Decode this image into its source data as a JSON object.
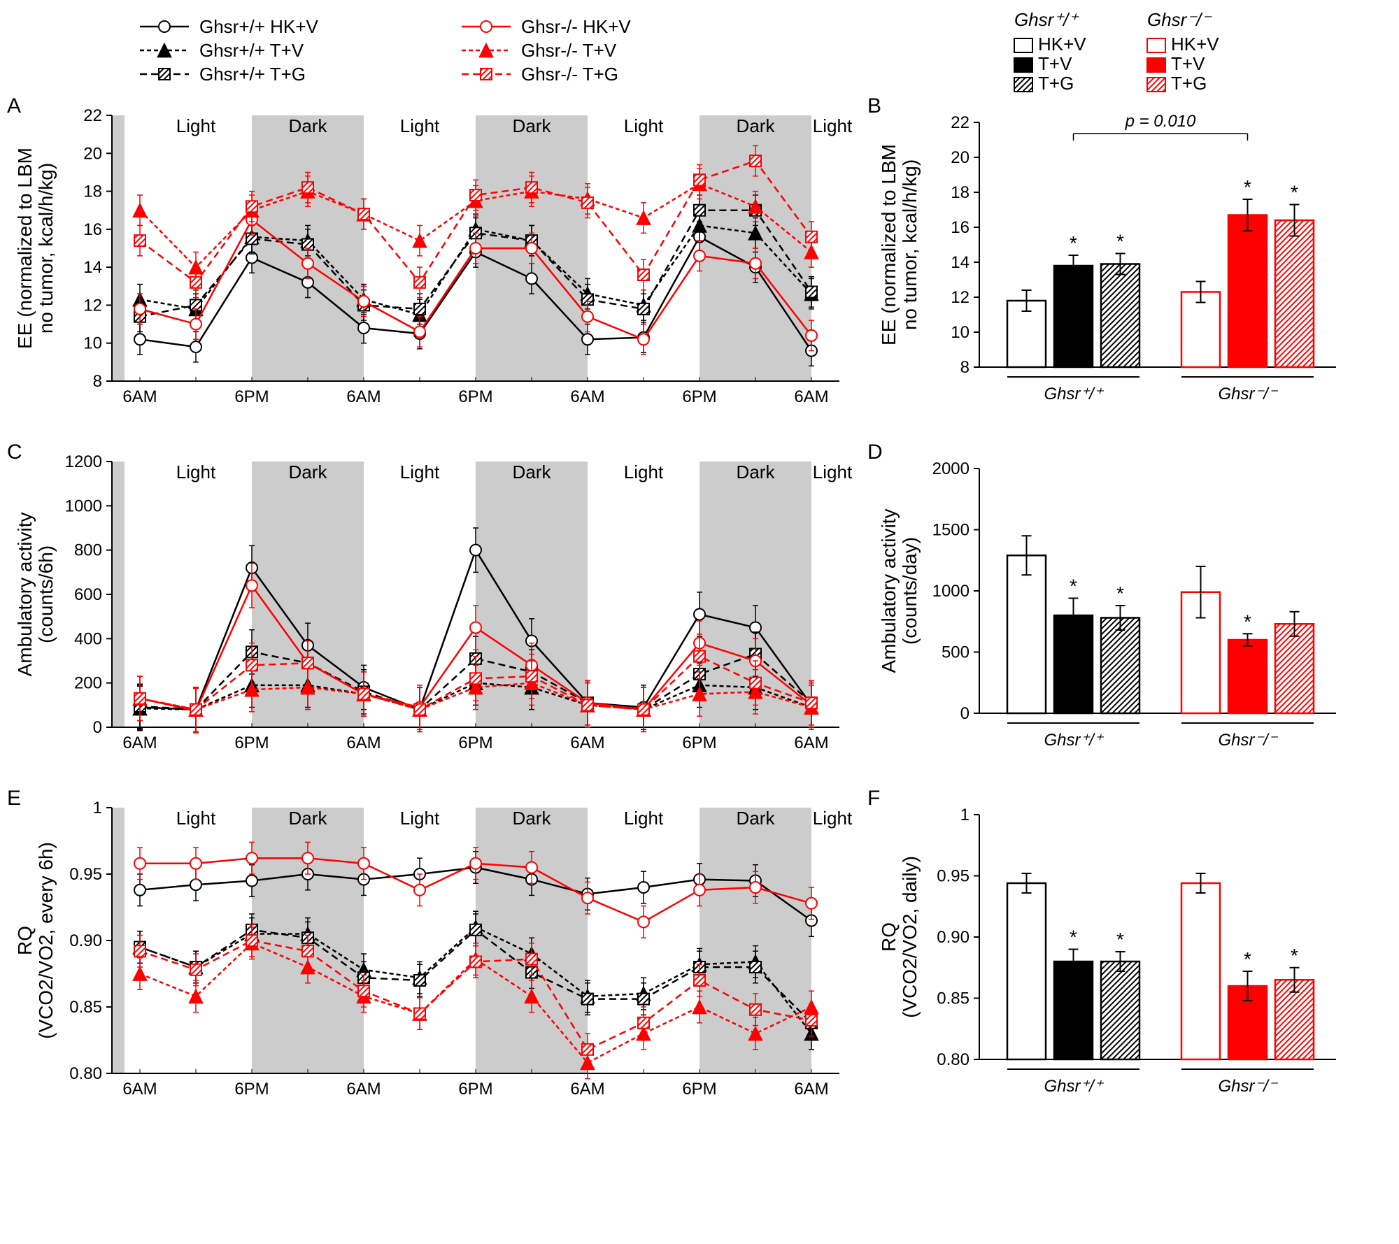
{
  "colors": {
    "black": "#000000",
    "red": "#ff0000",
    "shade": "#cccccc",
    "hatch_dark": "#555555",
    "hatch_red": "#ff8080",
    "white": "#ffffff"
  },
  "line_series": [
    {
      "id": "wt_hkv",
      "label": "Ghsr+/+ HK+V",
      "color": "#000000",
      "dash": "",
      "marker": "circle",
      "fill": "#ffffff"
    },
    {
      "id": "wt_tv",
      "label": "Ghsr+/+ T+V",
      "color": "#000000",
      "dash": "6,4",
      "marker": "triangle",
      "fill": "#000000"
    },
    {
      "id": "wt_tg",
      "label": "Ghsr+/+ T+G",
      "color": "#000000",
      "dash": "10,6",
      "marker": "square-hatch",
      "fill": "hatch-black"
    },
    {
      "id": "ko_hkv",
      "label": "Ghsr-/- HK+V",
      "color": "#ff0000",
      "dash": "",
      "marker": "circle",
      "fill": "#ffffff"
    },
    {
      "id": "ko_tv",
      "label": "Ghsr-/- T+V",
      "color": "#ff0000",
      "dash": "6,4",
      "marker": "triangle",
      "fill": "#ff0000"
    },
    {
      "id": "ko_tg",
      "label": "Ghsr-/- T+G",
      "color": "#ff0000",
      "dash": "10,6",
      "marker": "square-hatch",
      "fill": "hatch-red"
    }
  ],
  "bar_legend": {
    "wt_label": "Ghsr⁺/⁺",
    "ko_label": "Ghsr⁻/⁻",
    "wt_groups": [
      "HK+V",
      "T+V",
      "T+G"
    ],
    "ko_groups": [
      "HK+V",
      "T+V",
      "T+G"
    ]
  },
  "time_ticks": [
    "6AM",
    "6PM",
    "6AM",
    "6PM",
    "6AM",
    "6PM",
    "6AM"
  ],
  "light_dark": [
    "Light",
    "Dark",
    "Light",
    "Dark",
    "Light",
    "Dark",
    "Light"
  ],
  "panelA": {
    "ylabel": "EE (normalized to LBM no tumor, kcal/h/kg)",
    "ylim": [
      8,
      22
    ],
    "yticks": [
      8,
      10,
      12,
      14,
      16,
      18,
      20,
      22
    ],
    "data": {
      "wt_hkv": [
        10.2,
        9.8,
        14.5,
        13.2,
        10.8,
        10.5,
        14.8,
        13.4,
        10.2,
        10.3,
        15.6,
        14.0,
        9.6
      ],
      "wt_tv": [
        12.3,
        11.8,
        15.6,
        15.4,
        12.3,
        11.5,
        16.0,
        15.4,
        12.6,
        12.0,
        16.2,
        15.8,
        12.6
      ],
      "wt_tg": [
        11.4,
        12.0,
        15.5,
        15.2,
        12.0,
        11.8,
        15.8,
        15.4,
        12.3,
        11.8,
        17.0,
        17.0,
        12.7
      ],
      "ko_hkv": [
        11.8,
        11.0,
        16.5,
        14.2,
        12.2,
        10.6,
        15.0,
        15.0,
        11.4,
        10.2,
        14.6,
        14.2,
        10.4
      ],
      "ko_tv": [
        17.0,
        14.0,
        17.0,
        18.0,
        16.8,
        15.4,
        17.5,
        18.0,
        17.6,
        16.6,
        18.4,
        17.2,
        14.8
      ],
      "ko_tg": [
        15.4,
        13.2,
        17.2,
        18.2,
        16.8,
        13.2,
        17.8,
        18.2,
        17.4,
        13.6,
        18.6,
        19.6,
        15.6
      ]
    },
    "err": 0.8
  },
  "panelB": {
    "ylabel": "EE (normalized to LBM no tumor, kcal/h/kg)",
    "ylim": [
      8,
      22
    ],
    "yticks": [
      8,
      10,
      12,
      14,
      16,
      18,
      20,
      22
    ],
    "bars": [
      {
        "g": "wt",
        "t": "HK+V",
        "v": 11.8,
        "e": 0.6,
        "star": false
      },
      {
        "g": "wt",
        "t": "T+V",
        "v": 13.8,
        "e": 0.6,
        "star": true
      },
      {
        "g": "wt",
        "t": "T+G",
        "v": 13.9,
        "e": 0.6,
        "star": true
      },
      {
        "g": "ko",
        "t": "HK+V",
        "v": 12.3,
        "e": 0.6,
        "star": false
      },
      {
        "g": "ko",
        "t": "T+V",
        "v": 16.7,
        "e": 0.9,
        "star": true
      },
      {
        "g": "ko",
        "t": "T+G",
        "v": 16.4,
        "e": 0.9,
        "star": true
      }
    ],
    "pvalue": "p = 0.010"
  },
  "panelC": {
    "ylabel": "Ambulatory activity (counts/6h)",
    "ylim": [
      0,
      1200
    ],
    "yticks": [
      0,
      200,
      400,
      600,
      800,
      1000,
      1200
    ],
    "data": {
      "wt_hkv": [
        90,
        80,
        720,
        370,
        180,
        80,
        800,
        390,
        110,
        90,
        510,
        450,
        100
      ],
      "wt_tv": [
        85,
        80,
        190,
        190,
        150,
        80,
        200,
        180,
        100,
        80,
        190,
        180,
        90
      ],
      "wt_tg": [
        95,
        80,
        340,
        290,
        160,
        80,
        310,
        250,
        110,
        80,
        240,
        330,
        110
      ],
      "ko_hkv": [
        130,
        75,
        640,
        290,
        150,
        90,
        450,
        280,
        110,
        80,
        380,
        300,
        100
      ],
      "ko_tv": [
        130,
        80,
        170,
        180,
        150,
        80,
        180,
        200,
        100,
        80,
        150,
        160,
        90
      ],
      "ko_tg": [
        130,
        80,
        280,
        290,
        150,
        80,
        220,
        230,
        100,
        80,
        320,
        200,
        110
      ]
    },
    "err": 100
  },
  "panelD": {
    "ylabel": "Ambulatory activity (counts/day)",
    "ylim": [
      0,
      2000
    ],
    "yticks": [
      0,
      500,
      1000,
      1500,
      2000
    ],
    "bars": [
      {
        "g": "wt",
        "t": "HK+V",
        "v": 1290,
        "e": 160,
        "star": false
      },
      {
        "g": "wt",
        "t": "T+V",
        "v": 800,
        "e": 140,
        "star": true
      },
      {
        "g": "wt",
        "t": "T+G",
        "v": 780,
        "e": 100,
        "star": true
      },
      {
        "g": "ko",
        "t": "HK+V",
        "v": 990,
        "e": 210,
        "star": false
      },
      {
        "g": "ko",
        "t": "T+V",
        "v": 600,
        "e": 50,
        "star": true
      },
      {
        "g": "ko",
        "t": "T+G",
        "v": 730,
        "e": 100,
        "star": false
      }
    ]
  },
  "panelE": {
    "ylabel": "RQ (VCO2/VO2, every 6h)",
    "ylim": [
      0.8,
      1.0
    ],
    "yticks": [
      0.8,
      0.85,
      0.9,
      0.95,
      1.0
    ],
    "data": {
      "wt_hkv": [
        0.938,
        0.942,
        0.945,
        0.95,
        0.946,
        0.95,
        0.955,
        0.946,
        0.935,
        0.94,
        0.946,
        0.945,
        0.915
      ],
      "wt_tv": [
        0.895,
        0.88,
        0.905,
        0.905,
        0.878,
        0.872,
        0.91,
        0.89,
        0.858,
        0.86,
        0.882,
        0.884,
        0.83
      ],
      "wt_tg": [
        0.895,
        0.88,
        0.908,
        0.902,
        0.872,
        0.87,
        0.908,
        0.876,
        0.856,
        0.856,
        0.88,
        0.88,
        0.838
      ],
      "ko_hkv": [
        0.958,
        0.958,
        0.962,
        0.962,
        0.958,
        0.938,
        0.958,
        0.955,
        0.932,
        0.914,
        0.938,
        0.94,
        0.928
      ],
      "ko_tv": [
        0.875,
        0.858,
        0.898,
        0.88,
        0.858,
        0.845,
        0.886,
        0.858,
        0.808,
        0.83,
        0.85,
        0.83,
        0.85
      ],
      "ko_tg": [
        0.892,
        0.878,
        0.9,
        0.892,
        0.862,
        0.845,
        0.884,
        0.886,
        0.818,
        0.838,
        0.87,
        0.848,
        0.84
      ]
    },
    "err": 0.012
  },
  "panelF": {
    "ylabel": "RQ (VCO2/VO2, daily)",
    "ylim": [
      0.8,
      1.0
    ],
    "yticks": [
      0.8,
      0.85,
      0.9,
      0.95,
      1.0
    ],
    "bars": [
      {
        "g": "wt",
        "t": "HK+V",
        "v": 0.944,
        "e": 0.008,
        "star": false
      },
      {
        "g": "wt",
        "t": "T+V",
        "v": 0.88,
        "e": 0.01,
        "star": true
      },
      {
        "g": "wt",
        "t": "T+G",
        "v": 0.88,
        "e": 0.008,
        "star": true
      },
      {
        "g": "ko",
        "t": "HK+V",
        "v": 0.944,
        "e": 0.008,
        "star": false
      },
      {
        "g": "ko",
        "t": "T+V",
        "v": 0.86,
        "e": 0.012,
        "star": true
      },
      {
        "g": "ko",
        "t": "T+G",
        "v": 0.865,
        "e": 0.01,
        "star": true
      }
    ]
  }
}
